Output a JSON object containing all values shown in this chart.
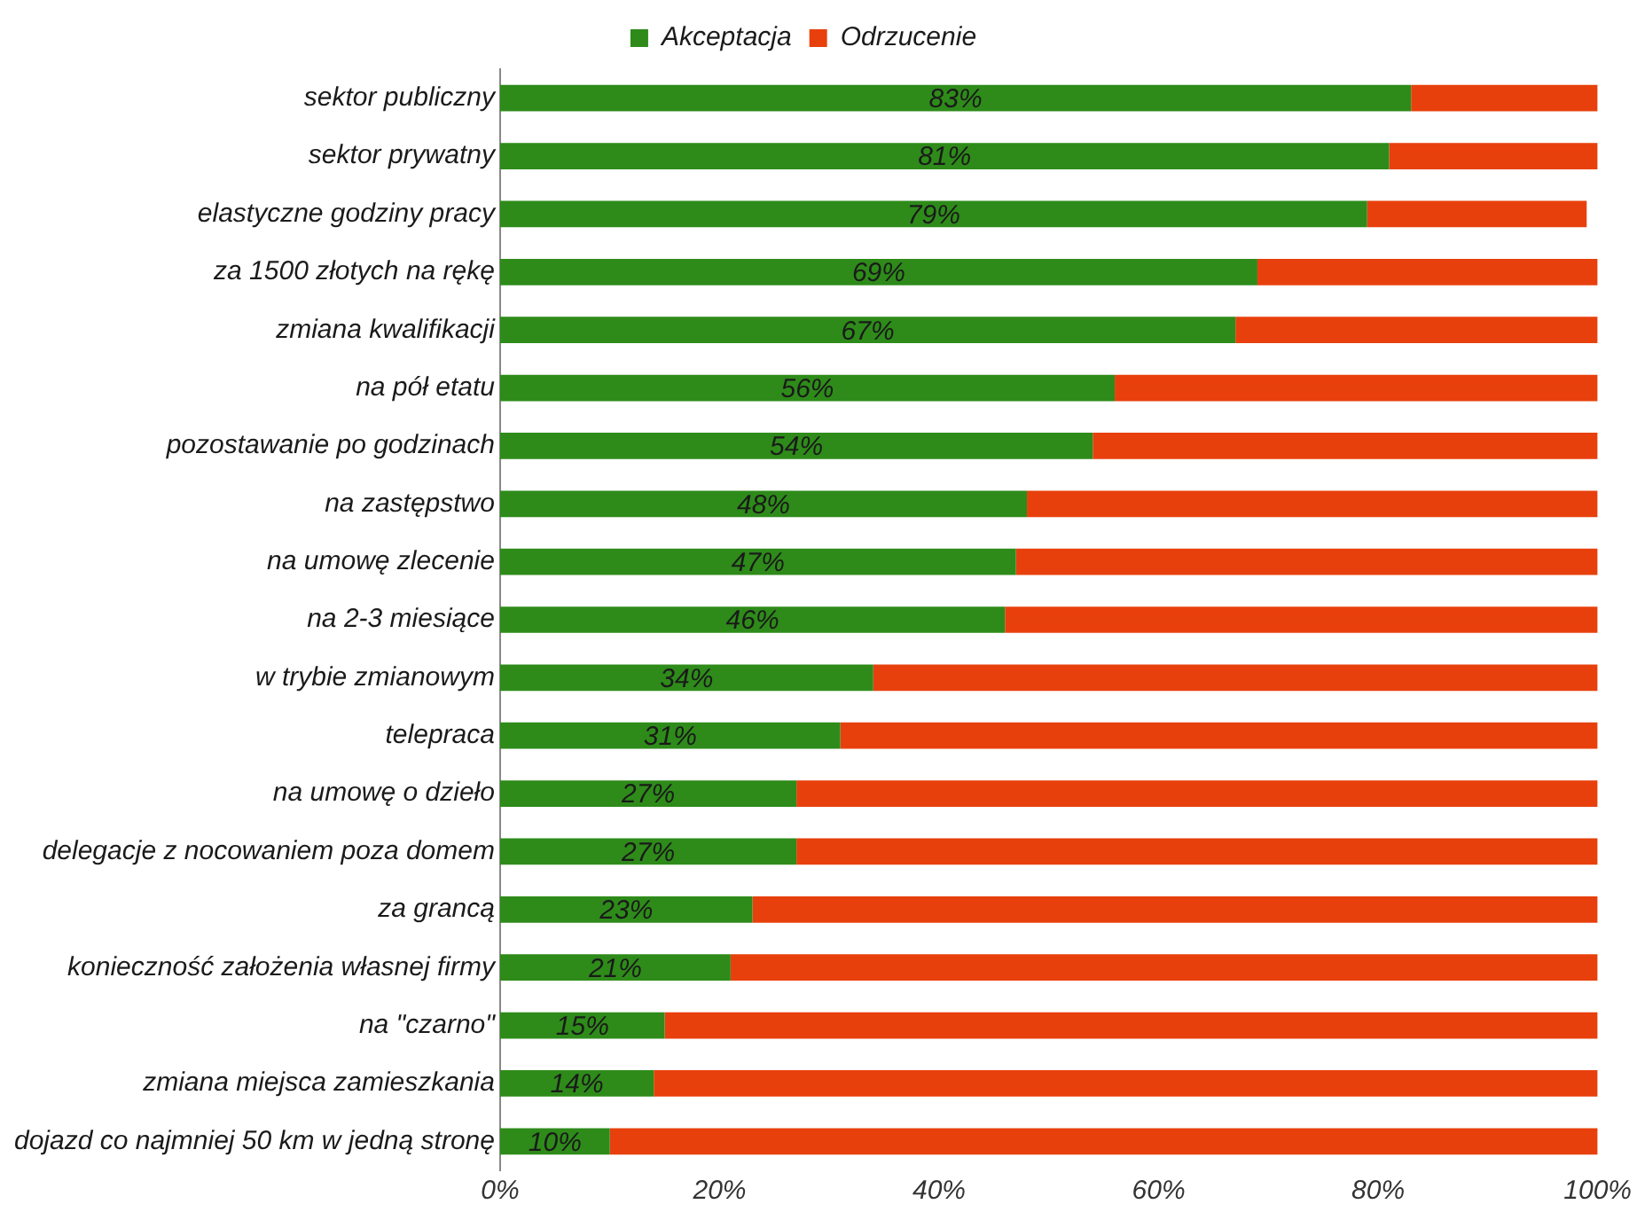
{
  "chart_data": {
    "type": "bar",
    "orientation": "horizontal",
    "stacked": true,
    "legend": "top",
    "grid": false,
    "categories": [
      "sektor publiczny",
      "sektor prywatny",
      "elastyczne godziny pracy",
      "za 1500 złotych na rękę",
      "zmiana kwalifikacji",
      "na pół etatu",
      "pozostawanie po godzinach",
      "na zastępstwo",
      "na umowę zlecenie",
      "na 2-3 miesiące",
      "w trybie zmianowym",
      "telepraca",
      "na umowę o dzieło",
      "delegacje z nocowaniem poza domem",
      "za grancą",
      "konieczność założenia własnej firmy",
      "na \"czarno\"",
      "zmiana miejsca zamieszkania",
      "dojazd co najmniej 50 km w jedną stronę"
    ],
    "series": [
      {
        "name": "Akceptacja",
        "color": "#2e8b1a",
        "values": [
          83,
          81,
          79,
          69,
          67,
          56,
          54,
          48,
          47,
          46,
          34,
          31,
          27,
          27,
          23,
          21,
          15,
          14,
          10
        ],
        "value_labels": [
          "83%",
          "81%",
          "79%",
          "69%",
          "67%",
          "56%",
          "54%",
          "48%",
          "47%",
          "46%",
          "34%",
          "31%",
          "27%",
          "27%",
          "23%",
          "21%",
          "15%",
          "14%",
          "10%"
        ]
      },
      {
        "name": "Odrzucenie",
        "color": "#e8400c",
        "values": [
          17,
          19,
          20,
          31,
          33,
          44,
          46,
          52,
          53,
          54,
          66,
          69,
          73,
          73,
          77,
          79,
          85,
          86,
          90
        ]
      }
    ],
    "xlim": [
      0,
      100
    ],
    "xticks": [
      {
        "value": 0,
        "label": "0%"
      },
      {
        "value": 20,
        "label": "20%"
      },
      {
        "value": 40,
        "label": "40%"
      },
      {
        "value": 60,
        "label": "60%"
      },
      {
        "value": 80,
        "label": "80%"
      },
      {
        "value": 100,
        "label": "100%"
      }
    ]
  }
}
